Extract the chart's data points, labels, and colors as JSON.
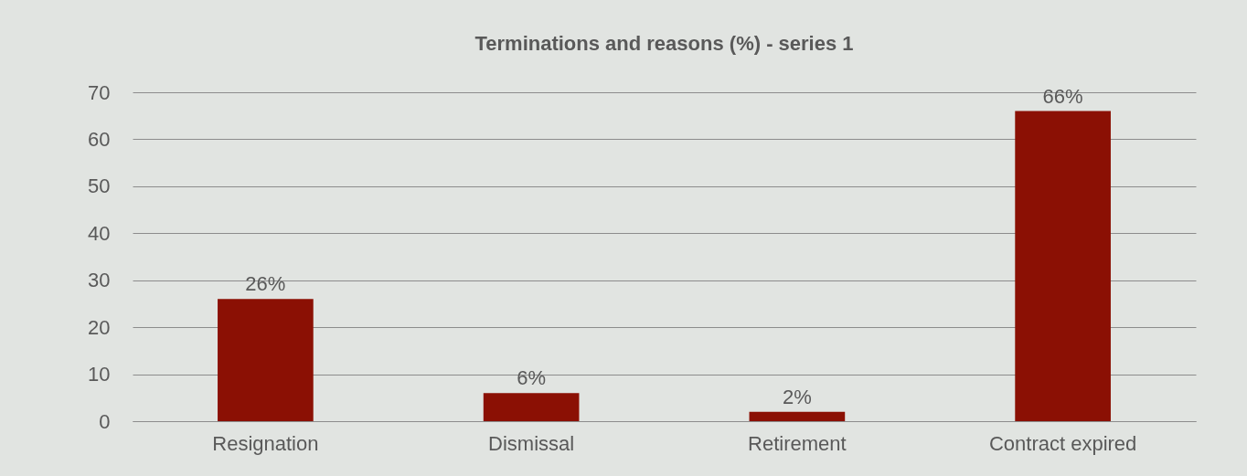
{
  "chart_data": {
    "type": "bar",
    "title": "Terminations and reasons (%) - series 1",
    "categories": [
      "Resignation",
      "Dismissal",
      "Retirement",
      "Contract expired"
    ],
    "values": [
      26,
      6,
      2,
      66
    ],
    "value_labels": [
      "26%",
      "6%",
      "2%",
      "66%"
    ],
    "color": "#8b1004",
    "ylim": [
      0,
      70
    ],
    "yticks": [
      0,
      10,
      20,
      30,
      40,
      50,
      60,
      70
    ],
    "grid": "y"
  }
}
